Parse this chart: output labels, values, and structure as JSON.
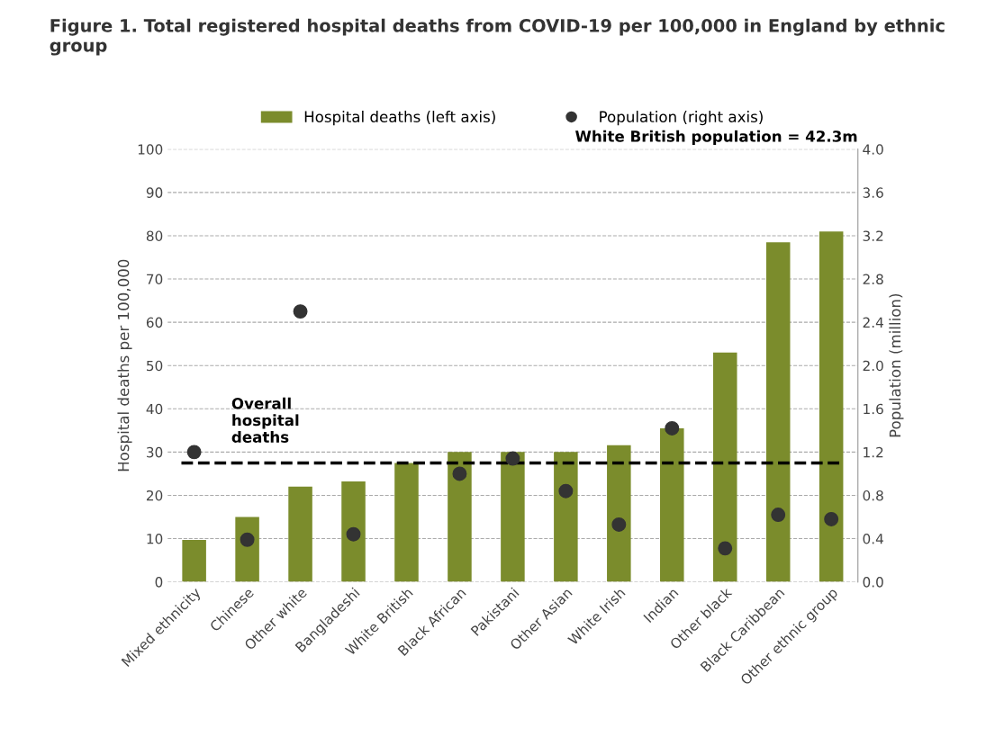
{
  "chart_data": {
    "type": "bar",
    "title": "Figure 1. Total registered hospital deaths from COVID-19 per 100,000 in England by ethnic group",
    "ylabel": "Hospital deaths per 100,000",
    "y2label": "Population (million)",
    "categories": [
      "Mixed ethnicity",
      "Chinese",
      "Other white",
      "Bangladeshi",
      "White British",
      "Black African",
      "Pakistani",
      "Other Asian",
      "White Irish",
      "Indian",
      "Other black",
      "Black Caribbean",
      "Other ethnic group"
    ],
    "series": [
      {
        "name": "Hospital deaths (left axis)",
        "color": "#7b8c2c",
        "values": [
          9.7,
          15,
          22,
          23.2,
          27.5,
          30,
          30,
          30,
          31.6,
          35.5,
          53,
          78.5,
          81
        ]
      },
      {
        "name": "Population (right axis)",
        "type": "scatter",
        "axis": "y2",
        "color": "#333333",
        "marker": "circle",
        "values": [
          1.2,
          0.39,
          2.5,
          0.44,
          null,
          1.0,
          1.14,
          0.84,
          0.53,
          1.42,
          0.31,
          0.62,
          0.58
        ]
      }
    ],
    "ylim": [
      0,
      100
    ],
    "yticks": [
      0,
      10,
      20,
      30,
      40,
      50,
      60,
      70,
      80,
      90,
      100
    ],
    "y2lim": [
      0,
      4.0
    ],
    "y2ticks": [
      {
        "value": 0,
        "label": "0.0"
      },
      {
        "value": 0.4,
        "label": "0.4"
      },
      {
        "value": 0.8,
        "label": "0.8"
      },
      {
        "value": 1.2,
        "label": "1.2"
      },
      {
        "value": 1.6,
        "label": "1.6"
      },
      {
        "value": 2.0,
        "label": "2.0"
      },
      {
        "value": 2.4,
        "label": "2.4"
      },
      {
        "value": 2.8,
        "label": "2.8"
      },
      {
        "value": 3.2,
        "label": "3.2"
      },
      {
        "value": 3.6,
        "label": "3.6"
      },
      {
        "value": 4.0,
        "label": "4.0"
      }
    ],
    "ref_lines": [
      {
        "axis": "y",
        "value": 27.5,
        "label": "Overall\nhospital\ndeaths",
        "color": "#000000",
        "line_style": "dashed"
      }
    ],
    "annotations": [
      "White British population = 42.3m"
    ],
    "grid": "y",
    "legend": "top"
  }
}
